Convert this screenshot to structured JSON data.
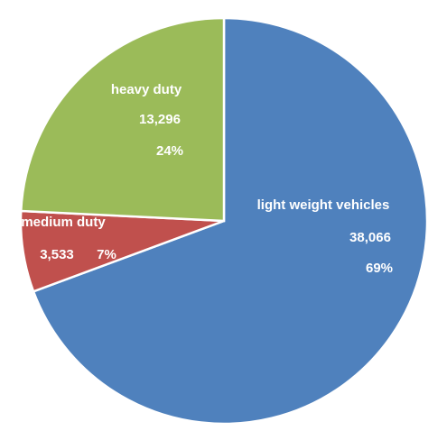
{
  "chart_data": {
    "type": "pie",
    "categories": [
      "light weight vehicles",
      "medium duty",
      "heavy duty"
    ],
    "values": [
      38066,
      3533,
      13296
    ],
    "value_labels": [
      "38,066",
      "3,533",
      "13,296"
    ],
    "percent_labels": [
      "69%",
      "7%",
      "24%"
    ],
    "colors": [
      "#4f81bd",
      "#c0504d",
      "#9bbb59"
    ]
  }
}
